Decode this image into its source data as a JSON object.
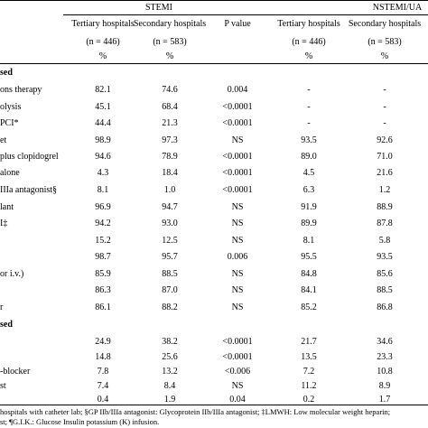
{
  "header": {
    "stemi": "STEMI",
    "nstemi": "NSTEMI/UA",
    "columns": [
      "Tertiary hospitals",
      "Secondary hospitals",
      "P value",
      "Tertiary hospitals",
      "Secondary hospitals"
    ],
    "n_values": [
      "(n = 446)",
      "(n = 583)",
      "",
      "(n = 446)",
      "(n = 583)"
    ],
    "units": [
      "%",
      "%",
      "",
      "%",
      "%"
    ]
  },
  "rows": [
    {
      "label": "sed",
      "bold": true,
      "values": [
        "",
        "",
        "",
        "",
        ""
      ]
    },
    {
      "label": "ons therapy",
      "values": [
        "82.1",
        "74.6",
        "0.004",
        "-",
        "-"
      ]
    },
    {
      "label": "olysis",
      "values": [
        "45.1",
        "68.4",
        "<0.0001",
        "-",
        "-"
      ]
    },
    {
      "label": "PCI*",
      "values": [
        "44.4",
        "21.3",
        "<0.0001",
        "-",
        "-"
      ]
    },
    {
      "label": "et",
      "values": [
        "98.9",
        "97.3",
        "NS",
        "93.5",
        "92.6"
      ]
    },
    {
      "label": "plus clopidogrel",
      "values": [
        "94.6",
        "78.9",
        "<0.0001",
        "89.0",
        "71.0"
      ]
    },
    {
      "label": "alone",
      "values": [
        "4.3",
        "18.4",
        "<0.0001",
        "4.5",
        "21.6"
      ]
    },
    {
      "label": "IIIa antagonist§",
      "values": [
        "8.1",
        "1.0",
        "<0.0001",
        "6.3",
        "1.2"
      ]
    },
    {
      "label": "lant",
      "values": [
        "96.9",
        "94.7",
        "NS",
        "91.9",
        "88.9"
      ]
    },
    {
      "label": "I‡",
      "values": [
        "94.2",
        "93.0",
        "NS",
        "89.9",
        "87.8"
      ]
    },
    {
      "label": "",
      "values": [
        "15.2",
        "12.5",
        "NS",
        "8.1",
        "5.8"
      ]
    },
    {
      "label": "",
      "values": [
        "98.7",
        "95.7",
        "0.006",
        "95.5",
        "93.5"
      ]
    },
    {
      "label": "or i.v.)",
      "values": [
        "85.9",
        "88.5",
        "NS",
        "84.8",
        "85.6"
      ]
    },
    {
      "label": "",
      "values": [
        "86.3",
        "87.0",
        "NS",
        "84.1",
        "88.5"
      ]
    },
    {
      "label": "r",
      "values": [
        "86.1",
        "88.2",
        "NS",
        "85.2",
        "86.8"
      ]
    },
    {
      "label": "sed",
      "bold": true,
      "values": [
        "",
        "",
        "",
        "",
        ""
      ]
    },
    {
      "label": "",
      "values": [
        "24.9",
        "38.2",
        "<0.0001",
        "21.7",
        "34.6"
      ]
    },
    {
      "label": "",
      "values": [
        "14.8",
        "25.6",
        "<0.0001",
        "13.5",
        "23.3"
      ]
    },
    {
      "label": "-blocker",
      "values": [
        "7.8",
        "13.2",
        "<0.006",
        "7.2",
        "10.8"
      ]
    },
    {
      "label": "st",
      "values": [
        "7.4",
        "8.4",
        "NS",
        "11.2",
        "8.9"
      ]
    },
    {
      "label": "",
      "values": [
        "0.4",
        "1.9",
        "0.04",
        "0.2",
        "1.7"
      ]
    }
  ],
  "footnote": {
    "line1": "hospitals with catheter lab; §GP IIb/IIIa antagonist: Glycoprotein IIb/IIIa antagonist; ‡LMWH: Low molecular weight heparin;",
    "line2": "st; ¶G.I.K.: Glucose Insulin potassium (K) infusion."
  }
}
